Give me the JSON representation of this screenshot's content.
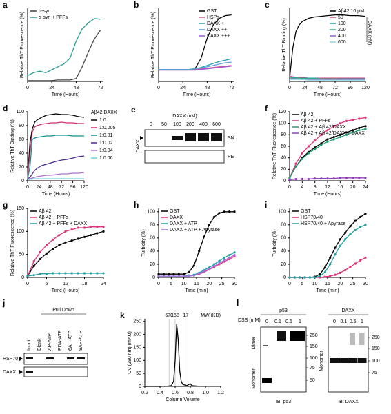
{
  "chart_data": [
    {
      "type": "line",
      "panel": "a",
      "xlabel": "Time (Hours)",
      "ylabel": "Relative ThT Fluorescence (%)",
      "x": [
        0,
        6,
        12,
        18,
        24,
        30,
        36,
        42,
        48,
        54,
        60,
        66,
        72
      ],
      "xlim": [
        0,
        75
      ],
      "xticks": [
        0,
        24,
        48,
        72
      ],
      "ylim": [
        0,
        100
      ],
      "legend": "upper left",
      "series": [
        {
          "name": "α-syn",
          "color": "#444444",
          "values": [
            1,
            1,
            1,
            1,
            1,
            2,
            2,
            2,
            4,
            20,
            40,
            58,
            70
          ]
        },
        {
          "name": "α-syn + PFFs",
          "color": "#2a9d8f",
          "values": [
            8,
            12,
            14,
            12,
            16,
            20,
            24,
            32,
            55,
            72,
            80,
            86,
            85
          ]
        }
      ]
    },
    {
      "type": "line",
      "panel": "b",
      "xlabel": "Time (Hours)",
      "ylabel": "Relative ThT Fluorescence (%)",
      "x": [
        0,
        6,
        12,
        18,
        24,
        30,
        36,
        42,
        48,
        54,
        60,
        66,
        72
      ],
      "xlim": [
        0,
        75
      ],
      "xticks": [
        0,
        24,
        48,
        72
      ],
      "ylim": [
        0,
        110
      ],
      "legend": "upper right",
      "series": [
        {
          "name": "GST",
          "color": "#000000",
          "values": [
            18,
            18,
            18,
            18,
            18,
            18,
            19,
            35,
            65,
            85,
            95,
            99,
            100
          ]
        },
        {
          "name": "HSPs",
          "color": "#e05590",
          "values": [
            18,
            18,
            18,
            18,
            18,
            18,
            18,
            19,
            20,
            21,
            22,
            23,
            24
          ]
        },
        {
          "name": "DAXX +",
          "color": "#20a0b0",
          "values": [
            18,
            18,
            18,
            18,
            18,
            18,
            19,
            21,
            24,
            27,
            30,
            32,
            34
          ]
        },
        {
          "name": "DAXX ++",
          "color": "#5aa0d8",
          "values": [
            18,
            18,
            18,
            18,
            18,
            18,
            19,
            20,
            22,
            24,
            26,
            28,
            29
          ]
        },
        {
          "name": "DAXX +++",
          "color": "#9b59d0",
          "values": [
            17,
            17,
            17,
            17,
            17,
            17,
            17,
            18,
            19,
            20,
            21,
            22,
            23
          ]
        }
      ]
    },
    {
      "type": "line",
      "panel": "c",
      "xlabel": "Time (Hours)",
      "ylabel": "Relative ThT Binding (%)",
      "x": [
        0,
        5,
        10,
        15,
        20,
        30,
        40,
        50,
        60,
        72,
        84,
        96,
        108,
        120
      ],
      "xlim": [
        0,
        120
      ],
      "xticks": [
        0,
        24,
        48,
        72,
        96,
        120
      ],
      "ylim": [
        0,
        110
      ],
      "legend": "upper right",
      "annotation": "DAXX (nM)",
      "series": [
        {
          "name": "Aβ42 10 μM",
          "color": "#000000",
          "values": [
            5,
            50,
            75,
            85,
            90,
            95,
            97,
            98,
            99,
            100,
            100,
            99,
            99,
            98
          ]
        },
        {
          "name": "50",
          "color": "#d0407a",
          "values": [
            8,
            7,
            6,
            6,
            6,
            5,
            5,
            5,
            5,
            5,
            5,
            5,
            5,
            5
          ]
        },
        {
          "name": "100",
          "color": "#20a0a0",
          "values": [
            7,
            6,
            6,
            5,
            5,
            5,
            5,
            4,
            4,
            4,
            4,
            4,
            4,
            4
          ]
        },
        {
          "name": "200",
          "color": "#40b080",
          "values": [
            6,
            5,
            5,
            5,
            4,
            4,
            4,
            4,
            4,
            4,
            3,
            3,
            3,
            3
          ]
        },
        {
          "name": "400",
          "color": "#9060c0",
          "values": [
            4,
            4,
            4,
            3,
            3,
            3,
            3,
            3,
            3,
            3,
            3,
            3,
            3,
            3
          ]
        },
        {
          "name": "600",
          "color": "#80d8e0",
          "values": [
            3,
            3,
            3,
            3,
            3,
            2,
            2,
            2,
            2,
            2,
            2,
            2,
            2,
            2
          ]
        }
      ]
    },
    {
      "type": "line",
      "panel": "d",
      "xlabel": "Time (Hours)",
      "ylabel": "Relative ThT Binding (%)",
      "x": [
        0,
        5,
        10,
        15,
        20,
        30,
        40,
        50,
        60,
        72,
        84,
        96,
        108,
        120
      ],
      "xlim": [
        0,
        120
      ],
      "xticks": [
        0,
        24,
        48,
        72,
        96,
        120
      ],
      "ylim": [
        0,
        100
      ],
      "yticks": [
        0,
        20,
        40,
        60,
        80,
        100
      ],
      "legend": "right",
      "legend_title": "Aβ42:DAXX",
      "series": [
        {
          "name": "1:0",
          "color": "#000000",
          "values": [
            5,
            55,
            75,
            85,
            88,
            92,
            95,
            96,
            97,
            96,
            96,
            95,
            93,
            92
          ]
        },
        {
          "name": "1:0.005",
          "color": "#d03070",
          "values": [
            5,
            40,
            70,
            78,
            80,
            82,
            83,
            84,
            84,
            85,
            84,
            84,
            83,
            83
          ]
        },
        {
          "name": "1:0.01",
          "color": "#109090",
          "values": [
            3,
            20,
            60,
            62,
            63,
            64,
            65,
            65,
            66,
            66,
            66,
            65,
            65,
            65
          ]
        },
        {
          "name": "1:0.02",
          "color": "#4a2a90",
          "values": [
            3,
            5,
            10,
            15,
            18,
            22,
            24,
            26,
            28,
            30,
            31,
            33,
            35,
            36
          ]
        },
        {
          "name": "1:0.04",
          "color": "#b070d0",
          "values": [
            2,
            3,
            4,
            5,
            6,
            7,
            8,
            8,
            9,
            10,
            10,
            11,
            11,
            12
          ]
        },
        {
          "name": "1:0.06",
          "color": "#70d0e0",
          "values": [
            2,
            2,
            3,
            3,
            3,
            3,
            3,
            3,
            3,
            3,
            3,
            3,
            3,
            3
          ]
        }
      ]
    },
    {
      "type": "line",
      "panel": "f",
      "xlabel": "Time (Hours)",
      "ylabel": "Relative ThT Fluorescence (%)",
      "x": [
        0,
        2,
        4,
        6,
        8,
        10,
        12,
        14,
        16,
        18,
        20,
        22,
        24
      ],
      "xlim": [
        0,
        24
      ],
      "xticks": [
        0,
        4,
        8,
        12,
        16,
        20,
        24
      ],
      "ylim": [
        0,
        120
      ],
      "yticks": [
        0,
        20,
        40,
        60,
        80,
        100,
        120
      ],
      "legend": "upper left",
      "markers": true,
      "series": [
        {
          "name": "Aβ 42",
          "color": "#000000",
          "values": [
            5,
            25,
            40,
            50,
            58,
            65,
            72,
            76,
            80,
            84,
            88,
            92,
            95
          ]
        },
        {
          "name": "Aβ 42 + PFFs",
          "color": "#e0307a",
          "values": [
            5,
            30,
            48,
            60,
            70,
            80,
            88,
            95,
            100,
            104,
            106,
            108,
            110
          ]
        },
        {
          "name": "Aβ 42 + Aβ 42/DAXX",
          "color": "#20a070",
          "values": [
            5,
            25,
            38,
            48,
            55,
            62,
            68,
            72,
            76,
            80,
            84,
            88,
            90
          ]
        },
        {
          "name": "Aβ 42 + Aβ 42/DAXX + DAXX",
          "color": "#9040c0",
          "values": [
            2,
            3,
            3,
            3,
            4,
            4,
            4,
            4,
            5,
            5,
            5,
            5,
            5
          ]
        }
      ]
    },
    {
      "type": "line",
      "panel": "g",
      "xlabel": "Time (Hours)",
      "ylabel": "Relative ThT Fluorescence (%)",
      "x": [
        0,
        2,
        4,
        6,
        8,
        10,
        12,
        14,
        16,
        18,
        20,
        22,
        24
      ],
      "xlim": [
        0,
        24
      ],
      "xticks": [
        0,
        6,
        12,
        18,
        24
      ],
      "ylim": [
        0,
        150
      ],
      "yticks": [
        0,
        50,
        100,
        150
      ],
      "legend": "upper left",
      "markers": true,
      "series": [
        {
          "name": "Aβ 42",
          "color": "#000000",
          "values": [
            3,
            25,
            40,
            52,
            62,
            70,
            76,
            80,
            84,
            88,
            92,
            96,
            100
          ]
        },
        {
          "name": "Aβ 42 + PFFs",
          "color": "#e0307a",
          "values": [
            3,
            35,
            55,
            70,
            82,
            92,
            100,
            104,
            108,
            108,
            110,
            110,
            110
          ]
        },
        {
          "name": "Aβ 42 + PFFs + DAXX",
          "color": "#20a0a0",
          "values": [
            3,
            5,
            8,
            8,
            9,
            9,
            9,
            9,
            9,
            9,
            9,
            9,
            9
          ]
        }
      ]
    },
    {
      "type": "line",
      "panel": "h",
      "xlabel": "Time (min)",
      "ylabel": "Turbidity (%)",
      "x": [
        0,
        2,
        4,
        6,
        8,
        10,
        12,
        14,
        16,
        18,
        20,
        22,
        24,
        26,
        28,
        30
      ],
      "xlim": [
        0,
        30
      ],
      "xticks": [
        0,
        5,
        10,
        15,
        20,
        25,
        30
      ],
      "ylim": [
        0,
        105
      ],
      "yticks": [
        0,
        20,
        40,
        60,
        80,
        100
      ],
      "legend": "upper left",
      "markers": true,
      "series": [
        {
          "name": "GST",
          "color": "#000000",
          "values": [
            5,
            5,
            5,
            5,
            5,
            5,
            8,
            18,
            40,
            62,
            80,
            92,
            98,
            100,
            100,
            100
          ]
        },
        {
          "name": "DAXX",
          "color": "#e0307a",
          "values": [
            2,
            2,
            2,
            2,
            2,
            2,
            2,
            3,
            5,
            8,
            12,
            16,
            20,
            24,
            28,
            32
          ]
        },
        {
          "name": "DAXX + ATP",
          "color": "#20a0a0",
          "values": [
            2,
            2,
            2,
            2,
            2,
            2,
            3,
            4,
            7,
            11,
            15,
            20,
            25,
            30,
            34,
            38
          ]
        },
        {
          "name": "DAXX + ATP + Apyrase",
          "color": "#a070e0",
          "values": [
            2,
            2,
            2,
            2,
            2,
            2,
            2,
            3,
            6,
            9,
            13,
            17,
            22,
            26,
            30,
            34
          ]
        }
      ]
    },
    {
      "type": "line",
      "panel": "i",
      "xlabel": "Time (min)",
      "ylabel": "Turbidity (%)",
      "x": [
        0,
        2,
        4,
        6,
        8,
        10,
        12,
        14,
        16,
        18,
        20,
        22,
        24,
        26,
        28,
        30
      ],
      "xlim": [
        0,
        30
      ],
      "xticks": [
        0,
        5,
        10,
        15,
        20,
        25,
        30
      ],
      "ylim": [
        0,
        105
      ],
      "yticks": [
        0,
        20,
        40,
        60,
        80,
        100
      ],
      "legend": "upper left",
      "markers": true,
      "series": [
        {
          "name": "GST",
          "color": "#000000",
          "values": [
            0,
            0,
            0,
            0,
            0,
            1,
            5,
            15,
            30,
            45,
            58,
            68,
            78,
            86,
            92,
            97
          ]
        },
        {
          "name": "HSP70/40",
          "color": "#e0307a",
          "values": [
            0,
            0,
            0,
            0,
            0,
            0,
            0,
            1,
            2,
            4,
            7,
            11,
            16,
            21,
            26,
            30
          ]
        },
        {
          "name": "HSP70/40 + Apyrase",
          "color": "#20a0a0",
          "values": [
            0,
            0,
            0,
            0,
            0,
            0,
            2,
            8,
            20,
            35,
            48,
            58,
            66,
            72,
            77,
            80
          ]
        }
      ]
    },
    {
      "type": "line",
      "panel": "k",
      "xlabel": "Column Volume",
      "ylabel": "UV (280 nm) (mAU)",
      "x": [
        0.2,
        0.4,
        0.5,
        0.55,
        0.58,
        0.6,
        0.62,
        0.64,
        0.66,
        0.68,
        0.7,
        0.75,
        0.8,
        0.82,
        0.9,
        1.0,
        1.2
      ],
      "xlim": [
        0.2,
        1.2
      ],
      "xticks": [
        0.2,
        0.4,
        0.6,
        0.8,
        {
          "value": 1,
          "label": "1.0"
        },
        1.2
      ],
      "ylim": [
        0,
        260
      ],
      "yticks": [
        0,
        50,
        100,
        150,
        200,
        250
      ],
      "annotation": "MW (KD)",
      "reference_lines": [
        {
          "x": 0.52,
          "label": "670"
        },
        {
          "x": 0.6,
          "label": "158"
        },
        {
          "x": 0.74,
          "label": "17"
        }
      ],
      "series": [
        {
          "name": "UV",
          "color": "#000000",
          "values": [
            0,
            0,
            1,
            3,
            20,
            100,
            240,
            180,
            60,
            20,
            8,
            3,
            10,
            3,
            1,
            1,
            1
          ]
        }
      ]
    }
  ],
  "blots": {
    "e": {
      "panel": "e",
      "header": "DAXX (nM)",
      "lanes": [
        "0",
        "50",
        "100",
        "200",
        "400",
        "600"
      ],
      "rows": [
        "SN",
        "PE"
      ],
      "protein": "DAXX"
    },
    "j": {
      "panel": "j",
      "header": "Pull Down",
      "lanes": [
        "Input",
        "Blank",
        "AP-ATP",
        "EDA-ATP",
        "6AH-ATP",
        "8AH-ATP"
      ],
      "rows": [
        "HSP70",
        "DAXX"
      ]
    },
    "l": {
      "panel": "l",
      "treatment": "DSS (mM)",
      "left": {
        "title": "p53",
        "lanes": [
          "0",
          "0.1",
          "0.5",
          "1"
        ],
        "mw": [
          "250",
          "150",
          "100",
          "75",
          "50"
        ],
        "bands": [
          "Dimer",
          "Monomer"
        ],
        "footer": "IB: p53"
      },
      "right": {
        "title": "DAXX",
        "lanes": [
          "0",
          "0.1",
          "0.5",
          "1"
        ],
        "mw": [
          "250",
          "150",
          "100",
          "75"
        ],
        "bands": [
          "Monomer"
        ],
        "footer": "IB: DAXX"
      }
    }
  }
}
